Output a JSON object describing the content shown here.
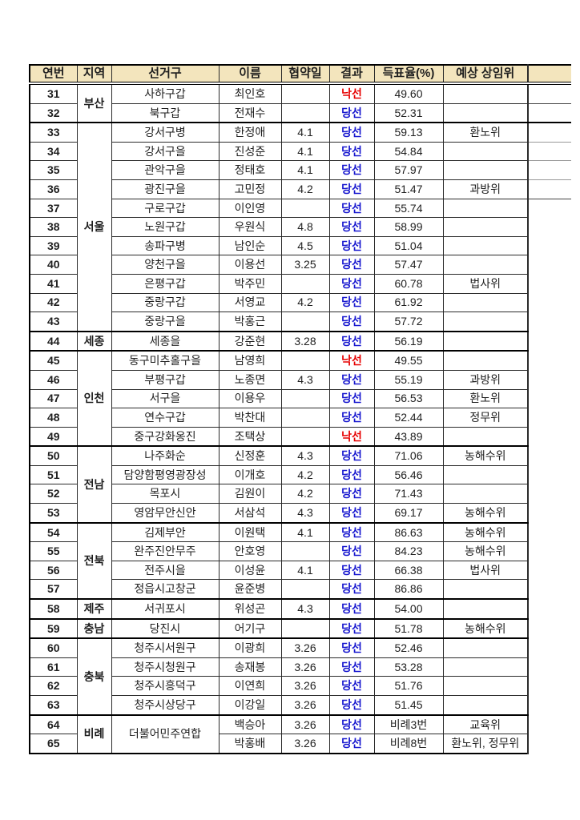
{
  "table": {
    "columns": [
      "연번",
      "지역",
      "선거구",
      "이름",
      "협약일",
      "결과",
      "득표율(%)",
      "예상 상임위"
    ],
    "colors": {
      "header_bg": "#F3E5BD",
      "border": "#2b2b2b",
      "win_text": "#1717CF",
      "lose_text": "#E60000",
      "body_text": "#1f1f1f"
    },
    "rows": [
      {
        "no": "31",
        "region": "부산",
        "span": 2,
        "district": "사하구갑",
        "name": "최인호",
        "date": "",
        "result": "낙선",
        "win": false,
        "rate": "49.60",
        "committee": "",
        "end": false
      },
      {
        "no": "32",
        "district": "북구갑",
        "name": "전재수",
        "date": "",
        "result": "당선",
        "win": true,
        "rate": "52.31",
        "committee": "",
        "end": true
      },
      {
        "no": "33",
        "region": "서울",
        "span": 11,
        "district": "강서구병",
        "name": "한정애",
        "date": "4.1",
        "result": "당선",
        "win": true,
        "rate": "59.13",
        "committee": "환노위",
        "end": false
      },
      {
        "no": "34",
        "district": "강서구을",
        "name": "진성준",
        "date": "4.1",
        "result": "당선",
        "win": true,
        "rate": "54.84",
        "committee": "",
        "end": false
      },
      {
        "no": "35",
        "district": "관악구을",
        "name": "정태호",
        "date": "4.1",
        "result": "당선",
        "win": true,
        "rate": "57.97",
        "committee": "",
        "end": false
      },
      {
        "no": "36",
        "district": "광진구을",
        "name": "고민정",
        "date": "4.2",
        "result": "당선",
        "win": true,
        "rate": "51.47",
        "committee": "과방위",
        "end": false
      },
      {
        "no": "37",
        "district": "구로구갑",
        "name": "이인영",
        "date": "",
        "result": "당선",
        "win": true,
        "rate": "55.74",
        "committee": "",
        "end": false
      },
      {
        "no": "38",
        "district": "노원구갑",
        "name": "우원식",
        "date": "4.8",
        "result": "당선",
        "win": true,
        "rate": "58.99",
        "committee": "",
        "end": false
      },
      {
        "no": "39",
        "district": "송파구병",
        "name": "남인순",
        "date": "4.5",
        "result": "당선",
        "win": true,
        "rate": "51.04",
        "committee": "",
        "end": false
      },
      {
        "no": "40",
        "district": "양천구을",
        "name": "이용선",
        "date": "3.25",
        "result": "당선",
        "win": true,
        "rate": "57.47",
        "committee": "",
        "end": false
      },
      {
        "no": "41",
        "district": "은평구갑",
        "name": "박주민",
        "date": "",
        "result": "당선",
        "win": true,
        "rate": "60.78",
        "committee": "법사위",
        "end": false
      },
      {
        "no": "42",
        "district": "중랑구갑",
        "name": "서영교",
        "date": "4.2",
        "result": "당선",
        "win": true,
        "rate": "61.92",
        "committee": "",
        "end": false
      },
      {
        "no": "43",
        "district": "중랑구을",
        "name": "박홍근",
        "date": "",
        "result": "당선",
        "win": true,
        "rate": "57.72",
        "committee": "",
        "end": true
      },
      {
        "no": "44",
        "region": "세종",
        "span": 1,
        "district": "세종을",
        "name": "강준현",
        "date": "3.28",
        "result": "당선",
        "win": true,
        "rate": "56.19",
        "committee": "",
        "end": true
      },
      {
        "no": "45",
        "region": "인천",
        "span": 5,
        "district": "동구미추홀구을",
        "name": "남영희",
        "date": "",
        "result": "낙선",
        "win": false,
        "rate": "49.55",
        "committee": "",
        "end": false
      },
      {
        "no": "46",
        "district": "부평구갑",
        "name": "노종면",
        "date": "4.3",
        "result": "당선",
        "win": true,
        "rate": "55.19",
        "committee": "과방위",
        "end": false
      },
      {
        "no": "47",
        "district": "서구을",
        "name": "이용우",
        "date": "",
        "result": "당선",
        "win": true,
        "rate": "56.53",
        "committee": "환노위",
        "end": false
      },
      {
        "no": "48",
        "district": "연수구갑",
        "name": "박찬대",
        "date": "",
        "result": "당선",
        "win": true,
        "rate": "52.44",
        "committee": "정무위",
        "end": false
      },
      {
        "no": "49",
        "district": "중구강화옹진",
        "name": "조택상",
        "date": "",
        "result": "낙선",
        "win": false,
        "rate": "43.89",
        "committee": "",
        "end": true
      },
      {
        "no": "50",
        "region": "전남",
        "span": 4,
        "district": "나주화순",
        "name": "신정훈",
        "date": "4.3",
        "result": "당선",
        "win": true,
        "rate": "71.06",
        "committee": "농해수위",
        "end": false
      },
      {
        "no": "51",
        "district": "담양함평영광장성",
        "name": "이개호",
        "date": "4.2",
        "result": "당선",
        "win": true,
        "rate": "56.46",
        "committee": "",
        "end": false
      },
      {
        "no": "52",
        "district": "목포시",
        "name": "김원이",
        "date": "4.2",
        "result": "당선",
        "win": true,
        "rate": "71.43",
        "committee": "",
        "end": false
      },
      {
        "no": "53",
        "district": "영암무안신안",
        "name": "서삼석",
        "date": "4.3",
        "result": "당선",
        "win": true,
        "rate": "69.17",
        "committee": "농해수위",
        "end": true
      },
      {
        "no": "54",
        "region": "전북",
        "span": 4,
        "district": "김제부안",
        "name": "이원택",
        "date": "4.1",
        "result": "당선",
        "win": true,
        "rate": "86.63",
        "committee": "농해수위",
        "end": false
      },
      {
        "no": "55",
        "district": "완주진안무주",
        "name": "안호영",
        "date": "",
        "result": "당선",
        "win": true,
        "rate": "84.23",
        "committee": "농해수위",
        "end": false
      },
      {
        "no": "56",
        "district": "전주시을",
        "name": "이성윤",
        "date": "4.1",
        "result": "당선",
        "win": true,
        "rate": "66.38",
        "committee": "법사위",
        "end": false
      },
      {
        "no": "57",
        "district": "정읍시고창군",
        "name": "윤준병",
        "date": "",
        "result": "당선",
        "win": true,
        "rate": "86.86",
        "committee": "",
        "end": true
      },
      {
        "no": "58",
        "region": "제주",
        "span": 1,
        "district": "서귀포시",
        "name": "위성곤",
        "date": "4.3",
        "result": "당선",
        "win": true,
        "rate": "54.00",
        "committee": "",
        "end": true
      },
      {
        "no": "59",
        "region": "충남",
        "span": 1,
        "district": "당진시",
        "name": "어기구",
        "date": "",
        "result": "당선",
        "win": true,
        "rate": "51.78",
        "committee": "농해수위",
        "end": true
      },
      {
        "no": "60",
        "region": "충북",
        "span": 4,
        "district": "청주시서원구",
        "name": "이광희",
        "date": "3.26",
        "result": "당선",
        "win": true,
        "rate": "52.46",
        "committee": "",
        "end": false
      },
      {
        "no": "61",
        "district": "청주시청원구",
        "name": "송재봉",
        "date": "3.26",
        "result": "당선",
        "win": true,
        "rate": "53.28",
        "committee": "",
        "end": false
      },
      {
        "no": "62",
        "district": "청주시흥덕구",
        "name": "이연희",
        "date": "3.26",
        "result": "당선",
        "win": true,
        "rate": "51.76",
        "committee": "",
        "end": false
      },
      {
        "no": "63",
        "district": "청주시상당구",
        "name": "이강일",
        "date": "3.26",
        "result": "당선",
        "win": true,
        "rate": "51.45",
        "committee": "",
        "end": true
      },
      {
        "no": "64",
        "region": "비례",
        "span": 2,
        "district": "더불어민주연합",
        "dspan": 2,
        "name": "백승아",
        "date": "3.26",
        "result": "당선",
        "win": true,
        "rate": "비례3번",
        "committee": "교육위",
        "end": false
      },
      {
        "no": "65",
        "name": "박홍배",
        "date": "3.26",
        "result": "당선",
        "win": true,
        "rate": "비례8번",
        "committee": "환노위, 정무위",
        "end": false
      }
    ]
  }
}
